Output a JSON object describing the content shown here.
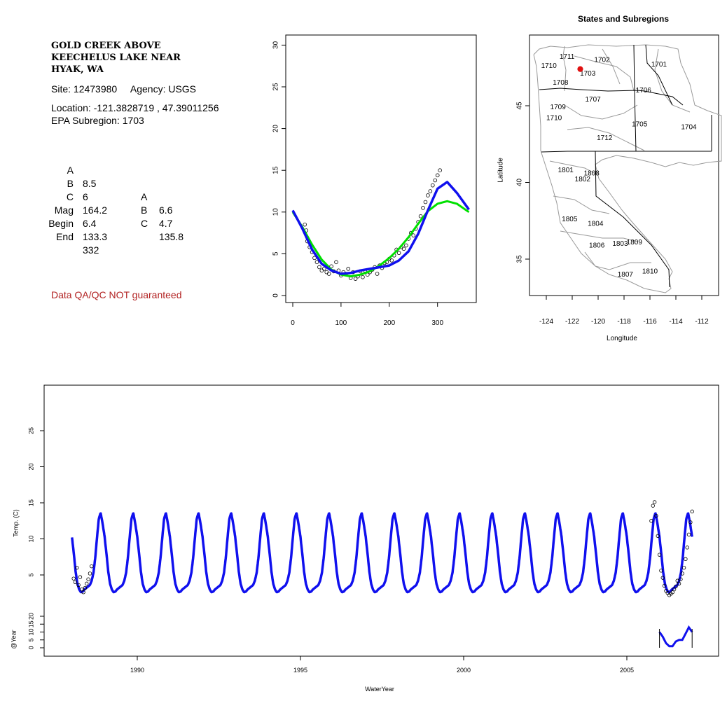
{
  "site": {
    "title_lines": [
      "GOLD CREEK ABOVE",
      "KEECHELUS LAKE NEAR",
      "HYAK, WA"
    ],
    "site_line": "Site: 12473980     Agency: USGS",
    "location_line": "Location: -121.3828719 , 47.39011256",
    "subregion_line": "EPA Subregion: 1703",
    "qa_note": "Data QA/QC NOT guaranteed"
  },
  "params": {
    "rows": [
      {
        "label": "A",
        "v1": "8.5",
        "label2": "A",
        "v2": "6.6"
      },
      {
        "label": "B",
        "v1": "6",
        "label2": "B",
        "v2": "4.7"
      },
      {
        "label": "C",
        "v1": "164.2",
        "label2": "C",
        "v2": "135.8"
      },
      {
        "label": "Mag",
        "v1": "6.4",
        "label2": "",
        "v2": ""
      },
      {
        "label": "Begin",
        "v1": "133.3",
        "label2": "",
        "v2": ""
      },
      {
        "label": "End",
        "v1": "332",
        "label2": "",
        "v2": ""
      }
    ]
  },
  "colors": {
    "green_fit": "#00e000",
    "blue_fit": "#1010ee",
    "qa": "#b22222",
    "site_dot": "#e01010"
  },
  "chart_data": [
    {
      "type": "scatter",
      "title": "",
      "xlabel": "",
      "ylabel": "",
      "xlim": [
        0,
        365
      ],
      "ylim": [
        0,
        30
      ],
      "xticks": [
        0,
        100,
        200,
        300
      ],
      "yticks": [
        0,
        5,
        10,
        15,
        20,
        25,
        30
      ],
      "series": [
        {
          "kind": "points",
          "x": [
            25,
            28,
            30,
            35,
            40,
            45,
            50,
            55,
            60,
            65,
            70,
            75,
            80,
            85,
            90,
            95,
            100,
            105,
            110,
            115,
            120,
            125,
            130,
            135,
            140,
            145,
            150,
            155,
            160,
            165,
            170,
            175,
            180,
            185,
            190,
            195,
            200,
            205,
            210,
            215,
            220,
            225,
            230,
            235,
            240,
            245,
            250,
            255,
            260,
            265,
            270,
            275,
            280,
            285,
            290,
            295,
            300,
            305
          ],
          "y": [
            8.5,
            7.8,
            6.5,
            5.8,
            5.2,
            4.5,
            4.0,
            3.4,
            3.0,
            3.2,
            2.8,
            2.6,
            3.5,
            2.9,
            4.0,
            3.0,
            2.4,
            2.8,
            2.6,
            3.2,
            2.1,
            2.8,
            2.0,
            2.3,
            2.9,
            2.2,
            3.0,
            2.5,
            2.8,
            3.1,
            3.4,
            2.6,
            3.6,
            3.3,
            3.9,
            4.0,
            4.4,
            4.2,
            4.8,
            5.5,
            5.1,
            5.8,
            5.6,
            6.0,
            6.8,
            7.5,
            7.2,
            8.0,
            8.8,
            9.5,
            10.5,
            11.2,
            12.0,
            12.5,
            13.2,
            13.8,
            14.4,
            15.0
          ]
        },
        {
          "kind": "line",
          "x": [
            0,
            20,
            40,
            60,
            80,
            100,
            120,
            140,
            160,
            180,
            200,
            220,
            240,
            260,
            280,
            300,
            320,
            340,
            365
          ],
          "y": [
            10.0,
            8.2,
            6.1,
            4.3,
            3.1,
            2.5,
            2.3,
            2.5,
            2.9,
            3.6,
            4.5,
            5.6,
            7.0,
            8.6,
            10.1,
            11.0,
            11.3,
            11.0,
            10.0
          ]
        },
        {
          "kind": "line",
          "x": [
            0,
            20,
            40,
            60,
            80,
            100,
            120,
            140,
            160,
            180,
            200,
            220,
            240,
            260,
            280,
            300,
            320,
            340,
            365
          ],
          "y": [
            10.2,
            8.0,
            5.5,
            3.8,
            3.0,
            2.6,
            2.7,
            3.0,
            3.2,
            3.4,
            3.6,
            4.2,
            5.3,
            7.4,
            10.2,
            12.8,
            13.6,
            12.3,
            10.3
          ]
        }
      ]
    },
    {
      "type": "line",
      "title": "",
      "xlabel": "WaterYear",
      "ylabel": "Temp. (C)",
      "ylabel2": "@Year",
      "xlim": [
        1987.3,
        2007.9
      ],
      "ylim": [
        0,
        30
      ],
      "xticks": [
        1990,
        1995,
        2000,
        2005
      ],
      "yticks": [
        5,
        10,
        15,
        20,
        25
      ],
      "yticks2": [
        0,
        5,
        10,
        15,
        20
      ],
      "cycle_start": 1988.0,
      "cycle_end": 2007.0,
      "cycle_min": 2.4,
      "cycle_max": 13.6,
      "obs_1988": {
        "x": [
          1988.05,
          1988.1,
          1988.15,
          1988.2,
          1988.25,
          1988.3,
          1988.35,
          1988.4,
          1988.45,
          1988.5,
          1988.55,
          1988.6
        ],
        "y": [
          4.5,
          4.0,
          6.0,
          3.6,
          4.7,
          3.0,
          2.6,
          3.2,
          3.8,
          4.4,
          5.2,
          6.2
        ]
      },
      "obs_2006": {
        "x": [
          2005.75,
          2005.8,
          2005.85,
          2005.9,
          2005.95,
          2006.0,
          2006.05,
          2006.1,
          2006.15,
          2006.2,
          2006.25,
          2006.3,
          2006.35,
          2006.4,
          2006.45,
          2006.5,
          2006.55,
          2006.6,
          2006.65,
          2006.7,
          2006.75,
          2006.8,
          2006.85,
          2006.9,
          2006.95,
          2007.0
        ],
        "y": [
          12.5,
          14.6,
          15.1,
          13.2,
          10.4,
          7.8,
          5.6,
          4.6,
          3.5,
          2.8,
          2.5,
          2.2,
          2.4,
          2.6,
          3.0,
          3.4,
          4.2,
          3.8,
          4.4,
          5.2,
          6.0,
          7.2,
          8.8,
          10.6,
          12.3,
          13.8
        ]
      },
      "bottom_strip": {
        "x": [
          2006.0,
          2006.1,
          2006.2,
          2006.3,
          2006.4,
          2006.5,
          2006.6,
          2006.7,
          2006.8,
          2006.9,
          2007.0
        ],
        "y": [
          10,
          7,
          3,
          1,
          1,
          4,
          5,
          5,
          9,
          13,
          10
        ]
      }
    },
    {
      "type": "map",
      "title": "States and Subregions",
      "xlabel": "Longitude",
      "ylabel": "Latitude",
      "xlim": [
        -125.2,
        -110.6
      ],
      "ylim": [
        32.6,
        49.5
      ],
      "xticks": [
        -124,
        -122,
        -120,
        -118,
        -116,
        -114,
        -112
      ],
      "yticks": [
        35,
        40,
        45
      ],
      "regions": [
        {
          "code": "1711",
          "lon": -122.4,
          "lat": 48.2
        },
        {
          "code": "1702",
          "lon": -119.7,
          "lat": 48.0
        },
        {
          "code": "1701",
          "lon": -115.3,
          "lat": 47.7
        },
        {
          "code": "1710",
          "lon": -123.8,
          "lat": 47.6
        },
        {
          "code": "1703",
          "lon": -120.8,
          "lat": 47.1
        },
        {
          "code": "1708",
          "lon": -122.9,
          "lat": 46.5
        },
        {
          "code": "1706",
          "lon": -116.5,
          "lat": 46.0
        },
        {
          "code": "1707",
          "lon": -120.4,
          "lat": 45.4
        },
        {
          "code": "1709",
          "lon": -123.1,
          "lat": 44.9
        },
        {
          "code": "1710",
          "lon": -123.4,
          "lat": 44.2
        },
        {
          "code": "1705",
          "lon": -116.8,
          "lat": 43.8
        },
        {
          "code": "1704",
          "lon": -113.0,
          "lat": 43.6
        },
        {
          "code": "1712",
          "lon": -119.5,
          "lat": 42.9
        },
        {
          "code": "1801",
          "lon": -122.5,
          "lat": 40.8
        },
        {
          "code": "1808",
          "lon": -120.5,
          "lat": 40.6
        },
        {
          "code": "1802",
          "lon": -121.2,
          "lat": 40.2
        },
        {
          "code": "1805",
          "lon": -122.2,
          "lat": 37.6
        },
        {
          "code": "1804",
          "lon": -120.2,
          "lat": 37.3
        },
        {
          "code": "1809",
          "lon": -117.2,
          "lat": 36.1
        },
        {
          "code": "1806",
          "lon": -120.1,
          "lat": 35.9
        },
        {
          "code": "1803",
          "lon": -118.3,
          "lat": 36.0
        },
        {
          "code": "1810",
          "lon": -116.0,
          "lat": 34.2
        },
        {
          "code": "1807",
          "lon": -117.9,
          "lat": 34.0
        }
      ],
      "site": {
        "lon": -121.38,
        "lat": 47.39
      }
    }
  ]
}
